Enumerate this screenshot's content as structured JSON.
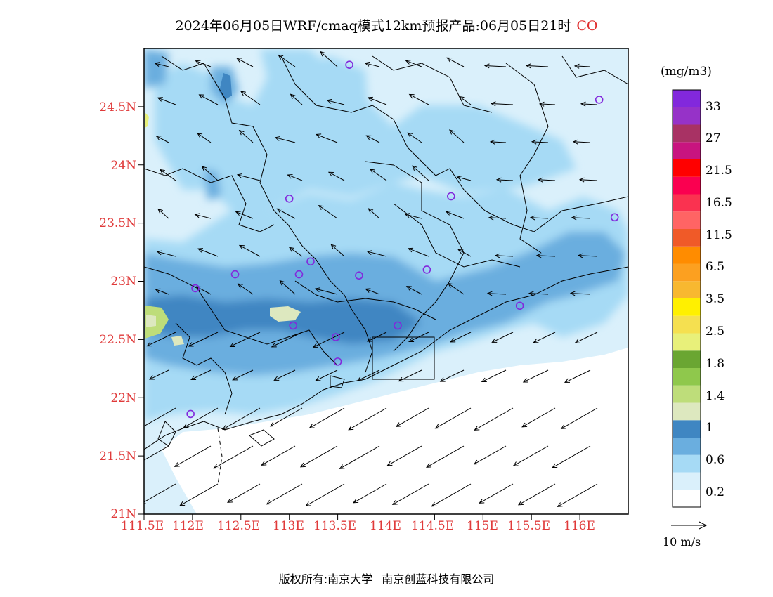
{
  "title": {
    "main": "2024年06月05日WRF/cmaq模式12km预报产品:06月05日21时",
    "species": "CO",
    "species_color": "#e03030"
  },
  "map": {
    "lat_labels": [
      "24.5N",
      "24N",
      "23.5N",
      "23N",
      "22.5N",
      "22N",
      "21.5N",
      "21N"
    ],
    "lon_labels": [
      "111.5E",
      "112E",
      "112.5E",
      "113E",
      "113.5E",
      "114E",
      "114.5E",
      "115E",
      "115.5E",
      "116E"
    ],
    "lat_range": [
      21,
      25
    ],
    "lon_range": [
      111.5,
      116.5
    ],
    "label_color": "#e03a3a"
  },
  "colorbar": {
    "units": "(mg/m3)",
    "colors": [
      "#ffffff",
      "#daf0fb",
      "#a6daf5",
      "#6aaedf",
      "#3f86c2",
      "#dde8bf",
      "#bedd7a",
      "#8fc84c",
      "#6aa632",
      "#e8f07a",
      "#f5e050",
      "#fff000",
      "#f8b830",
      "#fca020",
      "#ff8c00",
      "#f05a28",
      "#ff6464",
      "#fa3250",
      "#fa0050",
      "#ff0000",
      "#c8147f",
      "#a83264",
      "#9632c8",
      "#8228dc"
    ],
    "labels": [
      "0.2",
      "0.6",
      "1",
      "1.4",
      "1.8",
      "2.5",
      "3.5",
      "6.5",
      "11.5",
      "16.5",
      "21.5",
      "27",
      "33"
    ]
  },
  "wind_scale": {
    "label": "10 m/s"
  },
  "footer": {
    "left": "版权所有:南京大学",
    "right": "南京创蓝科技有限公司"
  },
  "stations": [
    [
      113.62,
      24.86
    ],
    [
      116.2,
      24.56
    ],
    [
      113.0,
      23.71
    ],
    [
      114.67,
      23.73
    ],
    [
      116.36,
      23.55
    ],
    [
      113.22,
      23.17
    ],
    [
      112.44,
      23.06
    ],
    [
      113.1,
      23.06
    ],
    [
      113.72,
      23.05
    ],
    [
      114.42,
      23.1
    ],
    [
      112.03,
      22.94
    ],
    [
      115.38,
      22.79
    ],
    [
      113.04,
      22.62
    ],
    [
      114.12,
      22.62
    ],
    [
      113.48,
      22.52
    ],
    [
      113.5,
      22.31
    ],
    [
      111.98,
      21.86
    ]
  ]
}
